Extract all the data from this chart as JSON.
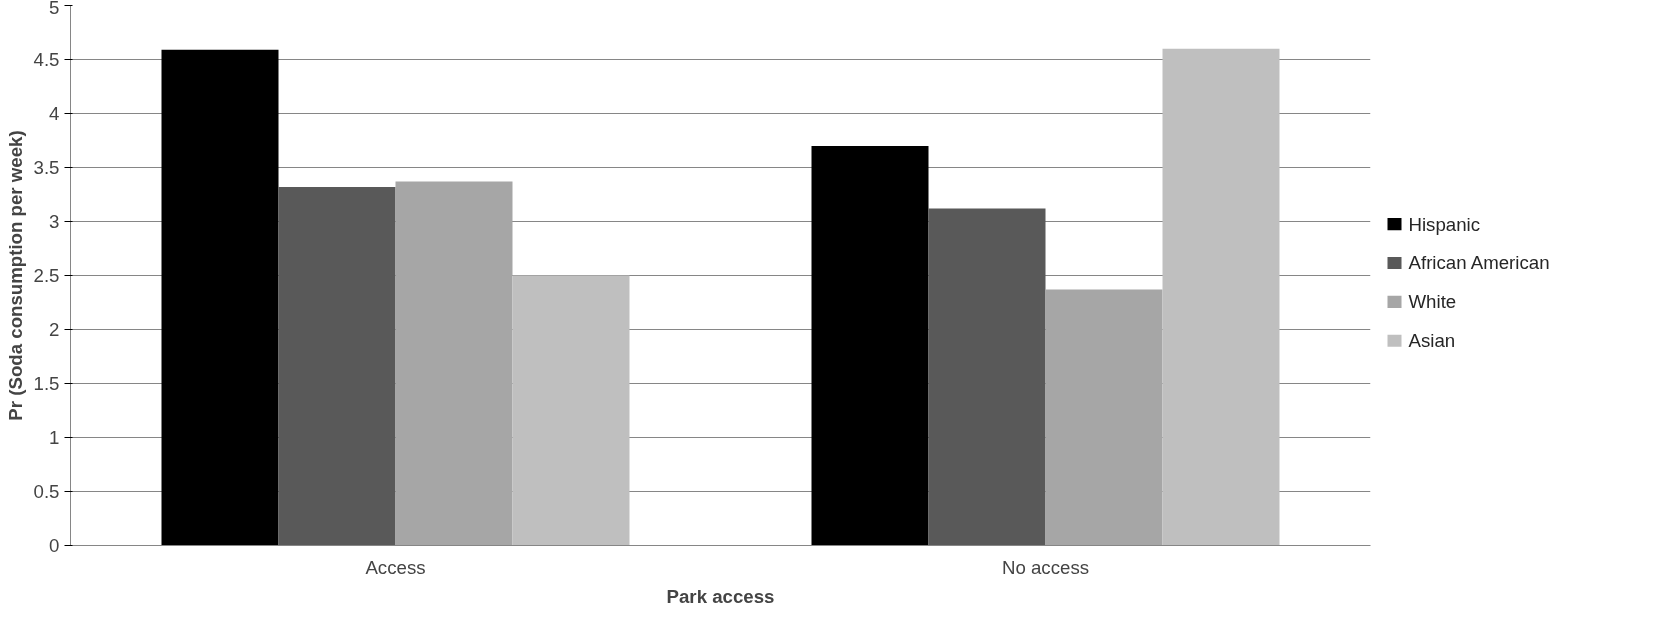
{
  "chart_data": {
    "type": "bar",
    "xlabel": "Park access",
    "ylabel": "Pr (Soda consumption per week)",
    "categories": [
      "Access",
      "No access"
    ],
    "series": [
      {
        "name": "Hispanic",
        "color": "#000000",
        "values": [
          4.59,
          3.7
        ]
      },
      {
        "name": "African American",
        "color": "#595959",
        "values": [
          3.32,
          3.12
        ]
      },
      {
        "name": "White",
        "color": "#a6a6a6",
        "values": [
          3.37,
          2.37
        ]
      },
      {
        "name": "Asian",
        "color": "#bfbfbf",
        "values": [
          2.5,
          4.6
        ]
      }
    ],
    "ylim": [
      0,
      5
    ],
    "yticks": [
      0,
      0.5,
      1,
      1.5,
      2,
      2.5,
      3,
      3.5,
      4,
      4.5,
      5
    ],
    "grid": "y",
    "legend": "right"
  }
}
